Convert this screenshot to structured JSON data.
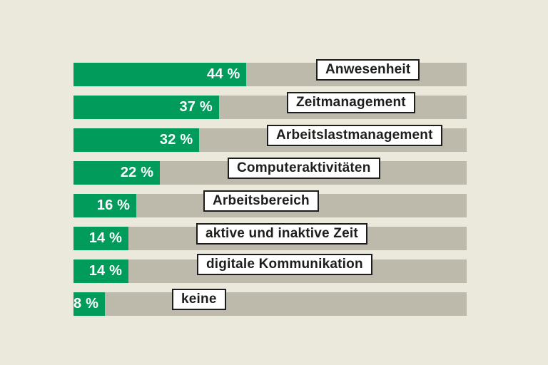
{
  "chart_data": {
    "type": "bar",
    "orientation": "horizontal",
    "unit": "%",
    "xlim": [
      0,
      100
    ],
    "grid": false,
    "legend": false,
    "categories": [
      "Anwesenheit",
      "Zeitmanagement",
      "Arbeitslastmanagement",
      "Computeraktivitäten",
      "Arbeitsbereich",
      "aktive und inaktive Zeit",
      "digitale Kommunikation",
      "keine"
    ],
    "values": [
      44,
      37,
      32,
      22,
      16,
      14,
      14,
      8
    ],
    "rows": [
      {
        "label": "Anwesenheit",
        "value": 44,
        "value_label": "44 %"
      },
      {
        "label": "Zeitmanagement",
        "value": 37,
        "value_label": "37 %"
      },
      {
        "label": "Arbeitslastmanagement",
        "value": 32,
        "value_label": "32 %"
      },
      {
        "label": "Computeraktivitäten",
        "value": 22,
        "value_label": "22 %"
      },
      {
        "label": "Arbeitsbereich",
        "value": 16,
        "value_label": "16 %"
      },
      {
        "label": "aktive und inaktive Zeit",
        "value": 14,
        "value_label": "14 %"
      },
      {
        "label": "digitale Kommunikation",
        "value": 14,
        "value_label": "14 %"
      },
      {
        "label": "keine",
        "value": 8,
        "value_label": "8 %"
      }
    ],
    "colors": {
      "background": "#ebe9dc",
      "bar_track": "#bdbaab",
      "bar_fill": "#019c5c",
      "value_text": "#ffffff",
      "label_text": "#1d1d1b",
      "label_box_bg": "#ffffff",
      "label_box_border": "#1d1d1b"
    }
  }
}
